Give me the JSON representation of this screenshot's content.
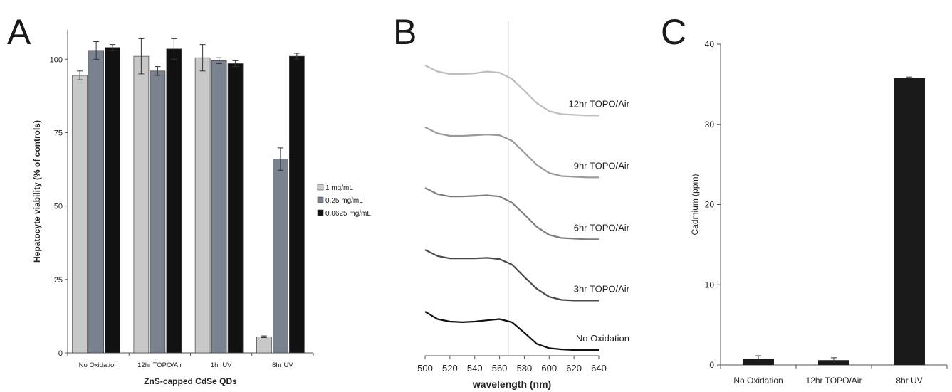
{
  "panels": {
    "A": {
      "letter": "A"
    },
    "B": {
      "letter": "B"
    },
    "C": {
      "letter": "C"
    }
  },
  "chart_data": [
    {
      "id": "A",
      "type": "bar",
      "title": "",
      "xlabel": "ZnS-capped CdSe QDs",
      "ylabel": "Hepatocyte viability (% of controls)",
      "ylim": [
        0,
        110
      ],
      "yticks": [
        0,
        25,
        50,
        75,
        100
      ],
      "categories": [
        "No Oxidation",
        "12hr TOPO/Air",
        "1hr UV",
        "8hr UV"
      ],
      "legend_position": "right",
      "series": [
        {
          "name": "1 mg/mL",
          "color": "#c8c8c8",
          "values": [
            94.5,
            101,
            100.5,
            5.5
          ],
          "errors": [
            1.5,
            6,
            4.5,
            0.3
          ]
        },
        {
          "name": "0.25 mg/mL",
          "color": "#7a8290",
          "values": [
            103,
            96,
            99.5,
            66
          ],
          "errors": [
            3,
            1.5,
            1,
            3.8
          ]
        },
        {
          "name": "0.0625 mg/mL",
          "color": "#111111",
          "values": [
            104,
            103.5,
            98.5,
            101
          ],
          "errors": [
            1,
            3.5,
            1,
            1
          ]
        }
      ]
    },
    {
      "id": "B",
      "type": "line",
      "title": "",
      "xlabel": "wavelength (nm)",
      "ylabel": "",
      "xlim": [
        500,
        640
      ],
      "xticks": [
        500,
        520,
        540,
        560,
        580,
        600,
        620,
        640
      ],
      "vline": 567,
      "series": [
        {
          "name": "12hr TOPO/Air",
          "color": "#bdbdbd",
          "x": [
            500,
            510,
            520,
            530,
            540,
            550,
            560,
            570,
            580,
            590,
            600,
            610,
            620,
            630,
            640
          ],
          "y": [
            4.6,
            4.5,
            4.46,
            4.46,
            4.47,
            4.5,
            4.48,
            4.38,
            4.19,
            3.99,
            3.86,
            3.81,
            3.8,
            3.79,
            3.79
          ]
        },
        {
          "name": "9hr TOPO/Air",
          "color": "#999999",
          "x": [
            500,
            510,
            520,
            530,
            540,
            550,
            560,
            570,
            580,
            590,
            600,
            610,
            620,
            630,
            640
          ],
          "y": [
            3.6,
            3.5,
            3.46,
            3.46,
            3.47,
            3.48,
            3.47,
            3.38,
            3.19,
            2.99,
            2.86,
            2.81,
            2.8,
            2.79,
            2.79
          ]
        },
        {
          "name": "6hr TOPO/Air",
          "color": "#7d7d7d",
          "x": [
            500,
            510,
            520,
            530,
            540,
            550,
            560,
            570,
            580,
            590,
            600,
            610,
            620,
            630,
            640
          ],
          "y": [
            2.62,
            2.52,
            2.48,
            2.48,
            2.49,
            2.5,
            2.48,
            2.38,
            2.19,
            1.99,
            1.86,
            1.81,
            1.8,
            1.79,
            1.79
          ]
        },
        {
          "name": "3hr TOPO/Air",
          "color": "#4a4a4a",
          "x": [
            500,
            510,
            520,
            530,
            540,
            550,
            560,
            570,
            580,
            590,
            600,
            610,
            620,
            630,
            640
          ],
          "y": [
            1.62,
            1.52,
            1.48,
            1.48,
            1.48,
            1.49,
            1.47,
            1.38,
            1.18,
            0.99,
            0.86,
            0.81,
            0.8,
            0.8,
            0.8
          ]
        },
        {
          "name": "No Oxidation",
          "color": "#111111",
          "x": [
            500,
            510,
            520,
            530,
            540,
            550,
            560,
            570,
            580,
            590,
            600,
            610,
            620,
            630,
            640
          ],
          "y": [
            0.62,
            0.5,
            0.46,
            0.45,
            0.46,
            0.48,
            0.5,
            0.45,
            0.28,
            0.1,
            0.03,
            0.01,
            0.0,
            0.0,
            0.0
          ]
        }
      ]
    },
    {
      "id": "C",
      "type": "bar",
      "title": "",
      "xlabel": "",
      "ylabel": "Cadmium (ppm)",
      "ylim": [
        0,
        40
      ],
      "yticks": [
        0,
        10,
        20,
        30,
        40
      ],
      "categories": [
        "No Oxidation",
        "12hr TOPO/Air",
        "8hr UV"
      ],
      "series": [
        {
          "color": "#1a1a1a",
          "values": [
            0.8,
            0.6,
            35.8
          ],
          "errors": [
            0.35,
            0.3,
            0.1
          ]
        }
      ]
    }
  ]
}
